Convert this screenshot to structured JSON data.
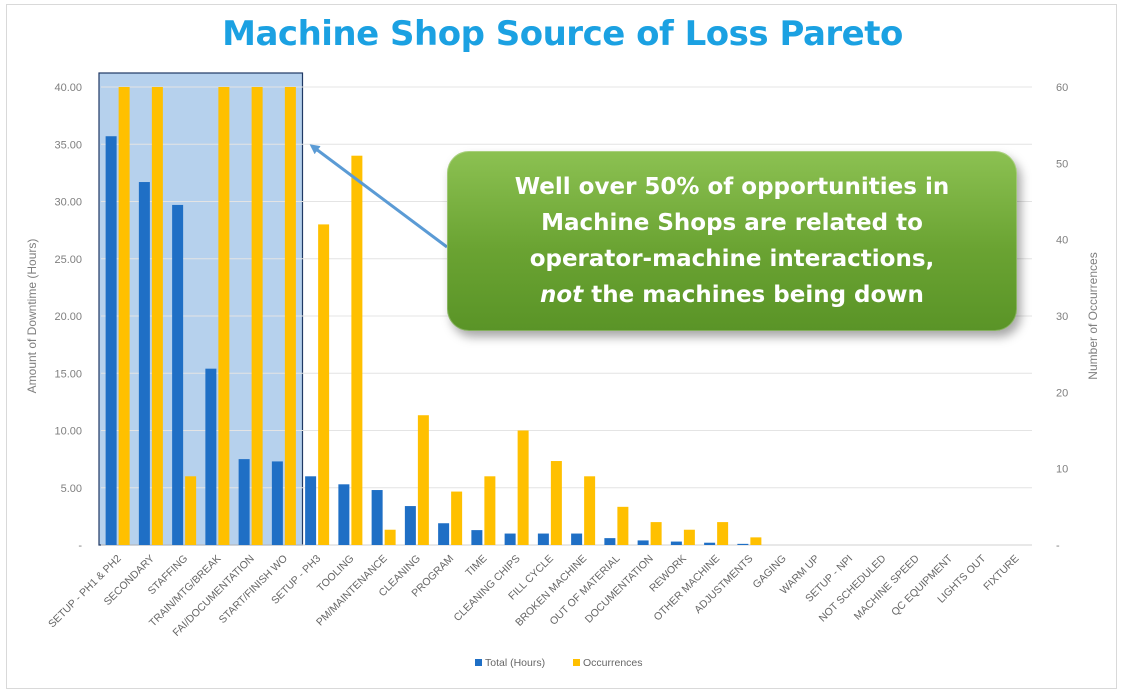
{
  "chart_data": {
    "type": "bar",
    "title": "Machine Shop Source of Loss Pareto",
    "ylabel": "Amount of Downtime (Hours)",
    "y2label": "Number of Occurrences",
    "ylim": [
      0,
      40
    ],
    "y2lim": [
      0,
      60
    ],
    "yticks": [
      "-",
      "5.00",
      "10.00",
      "15.00",
      "20.00",
      "25.00",
      "30.00",
      "35.00",
      "40.00"
    ],
    "y2ticks": [
      "-",
      "10",
      "20",
      "30",
      "40",
      "50",
      "60"
    ],
    "grid": true,
    "legend_position": "bottom",
    "categories": [
      "SETUP - PH1 & PH2",
      "SECONDARY",
      "STAFFING",
      "TRAIN/MTG/BREAK",
      "FAI/DOCUMENTATION",
      "START/FINISH WO",
      "SETUP - PH3",
      "TOOLING",
      "PM/MAINTENANCE",
      "CLEANING",
      "PROGRAM",
      "TIME",
      "CLEANING CHIPS",
      "FILL CYCLE",
      "BROKEN MACHINE",
      "OUT OF MATERIAL",
      "DOCUMENTATION",
      "REWORK",
      "OTHER MACHINE",
      "ADJUSTMENTS",
      "GAGING",
      "WARM UP",
      "SETUP - NPI",
      "NOT SCHEDULED",
      "MACHINE SPEED",
      "QC EQUIPMENT",
      "LIGHTS OUT",
      "FIXTURE"
    ],
    "series": [
      {
        "name": "Total (Hours)",
        "axis": "left",
        "color": "#1f6fc5",
        "values": [
          35.7,
          31.7,
          29.7,
          15.4,
          7.5,
          7.3,
          6.0,
          5.3,
          4.8,
          3.4,
          1.9,
          1.3,
          1.0,
          1.0,
          1.0,
          0.6,
          0.4,
          0.3,
          0.2,
          0.1,
          0,
          0,
          0,
          0,
          0,
          0,
          0,
          0
        ]
      },
      {
        "name": "Occurrences",
        "axis": "right",
        "color": "#ffc000",
        "values": [
          60,
          60,
          9,
          60,
          60,
          60,
          42,
          51,
          2,
          17,
          7,
          9,
          15,
          11,
          9,
          5,
          3,
          2,
          3,
          1,
          0,
          0,
          0,
          0,
          0,
          0,
          0,
          0
        ]
      }
    ],
    "highlight": {
      "from_category": "SETUP - PH1 & PH2",
      "to_category": "START/FINISH WO",
      "fill": "#a9c9ea",
      "stroke": "#1f3864"
    }
  },
  "callout": {
    "line1": "Well over 50% of opportunities in",
    "line2": "Machine Shops are related to",
    "line3": "operator-machine interactions,",
    "line4_em": "not",
    "line4_rest": " the machines being down",
    "color": "#6aa332"
  }
}
